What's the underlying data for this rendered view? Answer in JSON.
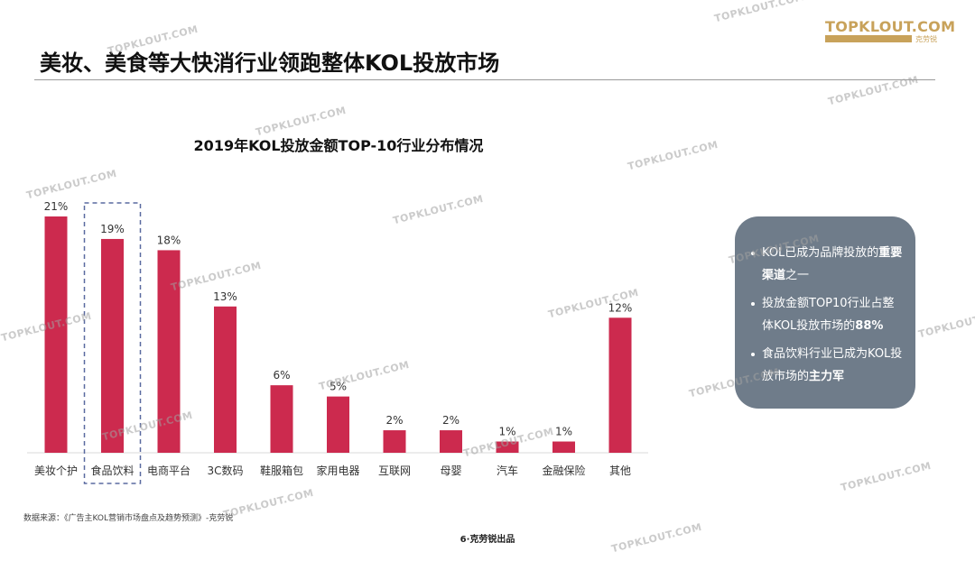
{
  "brand": {
    "logo_text": "TOPKLOUT.COM",
    "logo_cn": "克劳锐",
    "accent": "#c8a25a"
  },
  "page": {
    "title": "美妆、美食等大快消行业领跑整体KOL投放市场"
  },
  "chart_data": {
    "type": "bar",
    "title": "2019年KOL投放金额TOP-10行业分布情况",
    "categories": [
      "美妆个护",
      "食品饮料",
      "电商平台",
      "3C数码",
      "鞋服箱包",
      "家用电器",
      "互联网",
      "母婴",
      "汽车",
      "金融保险",
      "其他"
    ],
    "values": [
      21,
      19,
      18,
      13,
      6,
      5,
      2,
      2,
      1,
      1,
      12
    ],
    "value_labels": [
      "21%",
      "19%",
      "18%",
      "13%",
      "6%",
      "5%",
      "2%",
      "2%",
      "1%",
      "1%",
      "12%"
    ],
    "unit": "%",
    "highlighted_category": "食品饮料",
    "bar_color": "#cc2a4e",
    "highlight_border_color": "#5a6aa0",
    "ylim": [
      0,
      21
    ],
    "grid": false,
    "xlabel": "",
    "ylabel": ""
  },
  "info_box": {
    "background": "#6f7c8a",
    "bullets": [
      {
        "parts": [
          {
            "text": "KOL已成为品牌投放的",
            "bold": false
          },
          {
            "text": "重要渠道",
            "bold": true
          },
          {
            "text": "之一",
            "bold": false
          }
        ]
      },
      {
        "parts": [
          {
            "text": "投放金额TOP10行业占整体KOL投放市场的",
            "bold": false
          },
          {
            "text": "88%",
            "bold": true
          }
        ]
      },
      {
        "parts": [
          {
            "text": "食品饮料行业已成为KOL投放市场的",
            "bold": false
          },
          {
            "text": "主力军",
            "bold": true
          }
        ]
      }
    ]
  },
  "source": "数据来源：《广告主KOL营销市场盘点及趋势预测》-克劳锐",
  "footer": "6·克劳锐出品",
  "watermark": "TOPKLOUT.COM"
}
